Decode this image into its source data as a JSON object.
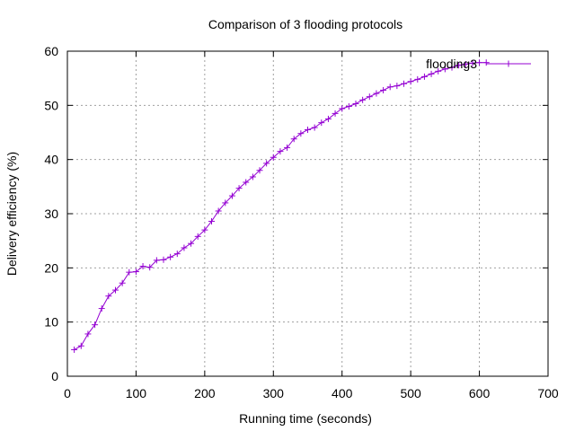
{
  "chart_data": {
    "type": "line",
    "title": "Comparison of 3 flooding protocols",
    "xlabel": "Running time (seconds)",
    "ylabel": "Delivery efficiency (%)",
    "xlim": [
      0,
      700
    ],
    "ylim": [
      0,
      60
    ],
    "xticks": [
      0,
      100,
      200,
      300,
      400,
      500,
      600,
      700
    ],
    "yticks": [
      0,
      10,
      20,
      30,
      40,
      50,
      60
    ],
    "grid": true,
    "legend_position": "top-right",
    "series": [
      {
        "name": "flooding3",
        "color": "#9400d3",
        "marker": "plus",
        "x": [
          10,
          20,
          30,
          40,
          50,
          60,
          70,
          80,
          90,
          100,
          110,
          120,
          130,
          140,
          150,
          160,
          170,
          180,
          190,
          200,
          210,
          220,
          230,
          240,
          250,
          260,
          270,
          280,
          290,
          300,
          310,
          320,
          330,
          340,
          350,
          360,
          370,
          380,
          390,
          400,
          410,
          420,
          430,
          440,
          450,
          460,
          470,
          480,
          490,
          500,
          510,
          520,
          530,
          540,
          550,
          560,
          570,
          580,
          590,
          600,
          610
        ],
        "y": [
          4.9,
          5.6,
          7.8,
          9.5,
          12.5,
          14.8,
          15.9,
          17.2,
          19.2,
          19.3,
          20.3,
          20.1,
          21.4,
          21.5,
          22.0,
          22.6,
          23.7,
          24.5,
          25.8,
          27.0,
          28.6,
          30.5,
          32.0,
          33.3,
          34.7,
          35.8,
          36.8,
          38.0,
          39.3,
          40.4,
          41.5,
          42.2,
          43.8,
          44.8,
          45.5,
          45.9,
          46.8,
          47.5,
          48.5,
          49.4,
          49.8,
          50.3,
          51.0,
          51.6,
          52.2,
          52.8,
          53.4,
          53.6,
          54.0,
          54.4,
          54.8,
          55.3,
          55.8,
          56.3,
          56.7,
          57.0,
          57.4,
          57.6,
          57.8,
          57.9,
          57.9
        ]
      }
    ]
  }
}
